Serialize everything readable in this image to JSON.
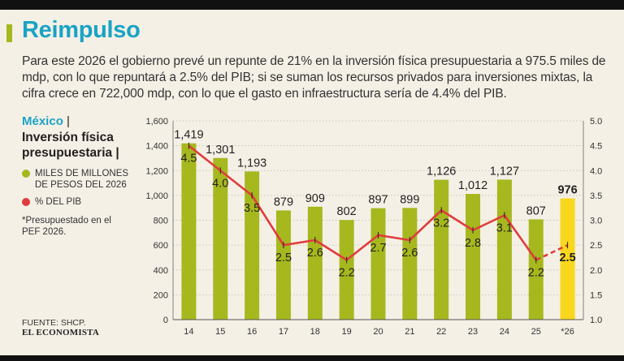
{
  "title": "Reimpulso",
  "intro": "Para este 2026 el gobierno prevé un repunte de 21% en la inversión física presupuestaria a 975.5 miles de mdp, con lo que repuntará a 2.5% del PIB; si se suman los recursos privados para inversiones mixtas, la cifra crece en 722,000 mdp, con lo que el gasto en infraestructura sería de 4.4% del PIB.",
  "sidebar": {
    "country": "México",
    "separator": "|",
    "subject": "Inversión física presupuestaria |",
    "legend": [
      {
        "label": "MILES DE MILLONES DE PESOS DEL 2026",
        "color": "#a6b81e"
      },
      {
        "label": "% DEL PIB",
        "color": "#e03c3c"
      }
    ],
    "note": "*Presupuestado en el PEF 2026."
  },
  "footer": {
    "source": "FUENTE: SHCP.",
    "logo": "EL ECONOMISTA"
  },
  "chart_data": {
    "type": "bar",
    "categories": [
      "14",
      "15",
      "16",
      "17",
      "18",
      "19",
      "20",
      "21",
      "22",
      "23",
      "24",
      "25",
      "*26"
    ],
    "series": [
      {
        "values": [
          1419,
          1301,
          1193,
          879,
          909,
          802,
          897,
          899,
          1126,
          1012,
          1127,
          807,
          976
        ],
        "labels": [
          "1,419",
          "1,301",
          "1,193",
          "879",
          "909",
          "802",
          "897",
          "899",
          "1,126",
          "1,012",
          "1,127",
          "807",
          "976"
        ],
        "color": "#a6b81e",
        "highlight_color": "#f9d71c",
        "axis": "left"
      },
      {
        "type": "line",
        "values": [
          4.5,
          4.0,
          3.5,
          2.5,
          2.6,
          2.2,
          2.7,
          2.6,
          3.2,
          2.8,
          3.1,
          2.2,
          2.5
        ],
        "labels": [
          "4.5",
          "4.0",
          "3.5",
          "2.5",
          "2.6",
          "2.2",
          "2.7",
          "2.6",
          "3.2",
          "2.8",
          "3.1",
          "2.2",
          "2.5"
        ],
        "color": "#e03c3c",
        "axis": "right"
      }
    ],
    "ylim": [
      0,
      1600
    ],
    "yticks": [
      "0",
      "200",
      "400",
      "600",
      "800",
      "1,000",
      "1,200",
      "1,400",
      "1,600"
    ],
    "y2lim": [
      1.0,
      5.0
    ],
    "y2ticks": [
      "1.0",
      "1.5",
      "2.0",
      "2.5",
      "3.0",
      "3.5",
      "4.0",
      "4.5",
      "5.0"
    ],
    "grid": true,
    "last_point_projected": true
  }
}
